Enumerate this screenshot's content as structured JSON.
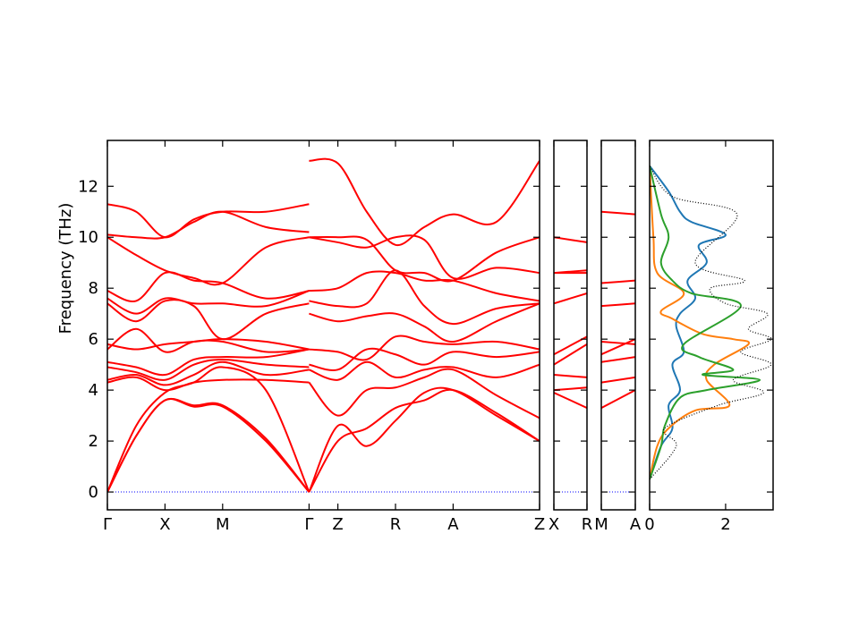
{
  "chart_data": {
    "type": "line",
    "ylabel": "Frequency (THz)",
    "ylim": [
      -0.7,
      13.8
    ],
    "yticks": [
      0,
      2,
      4,
      6,
      8,
      10,
      12
    ],
    "grid": false,
    "band_color": "#ff0000",
    "zero_line_color": "#0000ff",
    "panels": [
      {
        "kind": "band",
        "labels": [
          "Γ",
          "X",
          "M",
          "Γ",
          "Z",
          "R",
          "A",
          "Z"
        ],
        "label_positions": [
          0,
          1,
          2,
          3.5,
          4,
          5,
          6,
          7.5
        ],
        "x_range": [
          0,
          7.5
        ],
        "bands": [
          {
            "x": [
              0,
              0.5,
              1,
              1.5,
              2,
              2.75,
              3.5
            ],
            "y": [
              0,
              2.2,
              3.6,
              3.35,
              3.35,
              2.0,
              0
            ]
          },
          {
            "x": [
              0,
              0.5,
              1,
              1.5,
              2,
              2.75,
              3.5
            ],
            "y": [
              0,
              2.2,
              3.6,
              3.4,
              3.4,
              2.1,
              0
            ]
          },
          {
            "x": [
              0,
              0.5,
              1,
              1.5,
              2,
              2.75,
              3.5
            ],
            "y": [
              0,
              2.6,
              3.9,
              4.3,
              4.9,
              4.0,
              0
            ]
          },
          {
            "x": [
              0,
              0.5,
              1,
              1.5,
              2,
              2.75,
              3.5
            ],
            "y": [
              4.3,
              4.5,
              4.0,
              4.3,
              4.4,
              4.4,
              4.3
            ]
          },
          {
            "x": [
              0,
              0.5,
              1,
              1.5,
              2,
              2.75,
              3.5
            ],
            "y": [
              4.4,
              4.6,
              4.2,
              4.6,
              5.1,
              4.6,
              4.8
            ]
          },
          {
            "x": [
              0,
              0.5,
              1,
              1.5,
              2,
              2.75,
              3.5
            ],
            "y": [
              4.9,
              4.7,
              4.4,
              5.0,
              5.2,
              5.0,
              4.9
            ]
          },
          {
            "x": [
              0,
              0.5,
              1,
              1.5,
              2,
              2.75,
              3.5
            ],
            "y": [
              5.1,
              4.9,
              4.6,
              5.2,
              5.3,
              5.3,
              5.6
            ]
          },
          {
            "x": [
              0,
              0.5,
              1,
              1.5,
              2,
              2.75,
              3.5
            ],
            "y": [
              5.6,
              6.4,
              5.5,
              5.9,
              5.9,
              5.5,
              5.6
            ]
          },
          {
            "x": [
              0,
              0.5,
              1,
              1.5,
              2,
              2.75,
              3.5
            ],
            "y": [
              5.8,
              5.6,
              5.8,
              5.9,
              6.0,
              5.9,
              5.6
            ]
          },
          {
            "x": [
              0,
              0.5,
              1,
              1.5,
              2,
              2.75,
              3.5
            ],
            "y": [
              7.4,
              6.7,
              7.5,
              7.3,
              6.0,
              7.0,
              7.4
            ]
          },
          {
            "x": [
              0,
              0.5,
              1,
              1.5,
              2,
              2.75,
              3.5
            ],
            "y": [
              7.6,
              7.0,
              7.6,
              7.4,
              7.4,
              7.3,
              7.9
            ]
          },
          {
            "x": [
              0,
              0.5,
              1,
              1.5,
              2,
              2.75,
              3.5
            ],
            "y": [
              7.9,
              7.5,
              8.6,
              8.3,
              8.2,
              7.6,
              7.9
            ]
          },
          {
            "x": [
              0,
              0.5,
              1,
              1.5,
              2,
              2.75,
              3.5
            ],
            "y": [
              10.0,
              9.3,
              8.7,
              8.4,
              8.2,
              9.6,
              10.0
            ]
          },
          {
            "x": [
              0,
              0.5,
              1,
              1.5,
              2,
              2.75,
              3.5
            ],
            "y": [
              10.1,
              10.0,
              10.0,
              10.6,
              11.0,
              10.4,
              10.2
            ]
          },
          {
            "x": [
              0,
              0.5,
              1,
              1.5,
              2,
              2.75,
              3.5
            ],
            "y": [
              11.3,
              11.0,
              10.0,
              10.7,
              11.0,
              11.0,
              11.3
            ]
          },
          {
            "x": [
              3.5,
              4,
              4.5,
              5,
              5.5,
              6,
              6.75,
              7.5
            ],
            "y": [
              0,
              2.6,
              1.8,
              2.8,
              3.9,
              4.0,
              3.0,
              2.0
            ]
          },
          {
            "x": [
              3.5,
              4,
              4.5,
              5,
              5.5,
              6,
              6.75,
              7.5
            ],
            "y": [
              0,
              2.0,
              2.5,
              3.3,
              3.6,
              4.0,
              3.1,
              2.0
            ]
          },
          {
            "x": [
              3.5,
              4,
              4.5,
              5,
              5.5,
              6,
              6.75,
              7.5
            ],
            "y": [
              4.3,
              3.0,
              4.0,
              4.1,
              4.5,
              4.8,
              3.8,
              2.9
            ]
          },
          {
            "x": [
              3.5,
              4,
              4.5,
              5,
              5.5,
              6,
              6.75,
              7.5
            ],
            "y": [
              4.8,
              4.4,
              5.1,
              4.5,
              4.8,
              4.9,
              4.5,
              5.0
            ]
          },
          {
            "x": [
              3.5,
              4,
              4.5,
              5,
              5.5,
              6,
              6.75,
              7.5
            ],
            "y": [
              5.0,
              4.8,
              5.6,
              5.4,
              5.0,
              5.5,
              5.3,
              5.5
            ]
          },
          {
            "x": [
              3.5,
              4,
              4.5,
              5,
              5.5,
              6,
              6.75,
              7.5
            ],
            "y": [
              5.6,
              5.5,
              5.2,
              6.1,
              5.9,
              5.8,
              5.9,
              5.6
            ]
          },
          {
            "x": [
              3.5,
              4,
              4.5,
              5,
              5.5,
              6,
              6.75,
              7.5
            ],
            "y": [
              7.0,
              6.7,
              6.9,
              7.0,
              6.5,
              5.9,
              6.7,
              7.4
            ]
          },
          {
            "x": [
              3.5,
              4,
              4.5,
              5,
              5.5,
              6,
              6.75,
              7.5
            ],
            "y": [
              7.5,
              7.3,
              7.4,
              8.7,
              7.3,
              6.6,
              7.2,
              7.4
            ]
          },
          {
            "x": [
              3.5,
              4,
              4.5,
              5,
              5.5,
              6,
              6.75,
              7.5
            ],
            "y": [
              7.9,
              8.0,
              8.6,
              8.6,
              8.3,
              8.3,
              7.8,
              7.5
            ]
          },
          {
            "x": [
              3.5,
              4,
              4.5,
              5,
              5.5,
              6,
              6.75,
              7.5
            ],
            "y": [
              10.0,
              10.0,
              9.9,
              8.7,
              8.6,
              8.3,
              9.4,
              10.0
            ]
          },
          {
            "x": [
              3.5,
              4,
              4.5,
              5,
              5.5,
              6,
              6.75,
              7.5
            ],
            "y": [
              10.0,
              9.8,
              9.6,
              10.0,
              9.9,
              8.4,
              8.8,
              8.6
            ]
          },
          {
            "x": [
              3.5,
              4,
              4.5,
              5,
              5.5,
              6,
              6.75,
              7.5
            ],
            "y": [
              13.0,
              12.9,
              11.0,
              9.7,
              10.4,
              10.9,
              10.6,
              13.0
            ]
          }
        ]
      },
      {
        "kind": "band",
        "labels": [
          "X",
          "R"
        ],
        "label_positions": [
          0,
          1
        ],
        "x_range": [
          0,
          1
        ],
        "bands": [
          {
            "x": [
              0,
              1
            ],
            "y": [
              3.9,
              3.3
            ]
          },
          {
            "x": [
              0,
              1
            ],
            "y": [
              4.0,
              4.1
            ]
          },
          {
            "x": [
              0,
              1
            ],
            "y": [
              4.6,
              4.5
            ]
          },
          {
            "x": [
              0,
              1
            ],
            "y": [
              5.0,
              5.8
            ]
          },
          {
            "x": [
              0,
              1
            ],
            "y": [
              5.4,
              6.1
            ]
          },
          {
            "x": [
              0,
              1
            ],
            "y": [
              7.4,
              7.8
            ]
          },
          {
            "x": [
              0,
              1
            ],
            "y": [
              8.6,
              8.7
            ]
          },
          {
            "x": [
              0,
              1
            ],
            "y": [
              8.6,
              8.6
            ]
          },
          {
            "x": [
              0,
              1
            ],
            "y": [
              10.0,
              9.8
            ]
          }
        ]
      },
      {
        "kind": "band",
        "labels": [
          "M",
          "A"
        ],
        "label_positions": [
          0,
          1
        ],
        "x_range": [
          0,
          1
        ],
        "bands": [
          {
            "x": [
              0,
              1
            ],
            "y": [
              3.3,
              4.0
            ]
          },
          {
            "x": [
              0,
              1
            ],
            "y": [
              4.3,
              4.5
            ]
          },
          {
            "x": [
              0,
              1
            ],
            "y": [
              5.1,
              5.3
            ]
          },
          {
            "x": [
              0,
              1
            ],
            "y": [
              5.4,
              6.0
            ]
          },
          {
            "x": [
              0,
              1
            ],
            "y": [
              5.9,
              5.8
            ]
          },
          {
            "x": [
              0,
              1
            ],
            "y": [
              7.3,
              7.4
            ]
          },
          {
            "x": [
              0,
              1
            ],
            "y": [
              8.2,
              8.3
            ]
          },
          {
            "x": [
              0,
              1
            ],
            "y": [
              11.0,
              10.9
            ]
          }
        ]
      },
      {
        "kind": "dos",
        "x_range": [
          0,
          3.25
        ],
        "xticks": [
          0,
          2
        ],
        "series": [
          {
            "color": "#1f77b4",
            "style": "solid",
            "x": [
              0,
              0.3,
              0.6,
              0.5,
              0.8,
              0.6,
              0.9,
              0.7,
              0.8,
              1.2,
              1.0,
              1.5,
              1.3,
              2.0,
              1.1,
              0.8,
              0.5,
              0
            ],
            "y": [
              0.5,
              1.8,
              2.5,
              3.4,
              4.0,
              5.0,
              5.5,
              6.5,
              7.0,
              7.6,
              8.3,
              9.0,
              9.7,
              10.1,
              10.6,
              11.0,
              11.8,
              12.8
            ]
          },
          {
            "color": "#ff7f0e",
            "style": "solid",
            "x": [
              0,
              0.2,
              0.5,
              1.2,
              2.1,
              1.5,
              1.7,
              2.6,
              2.2,
              1.4,
              0.6,
              0.3,
              0.9,
              0.2,
              0.1,
              0
            ],
            "y": [
              0.5,
              1.8,
              2.5,
              3.2,
              3.4,
              4.4,
              5.0,
              5.8,
              6.0,
              6.2,
              6.8,
              7.1,
              7.8,
              8.6,
              10.0,
              12.8
            ]
          },
          {
            "color": "#2ca02c",
            "style": "solid",
            "x": [
              0,
              0.3,
              0.4,
              0.8,
              1.5,
              2.9,
              1.4,
              2.2,
              1.3,
              0.9,
              2.4,
              1.1,
              0.6,
              0.3,
              0.5,
              0.3,
              0
            ],
            "y": [
              0.5,
              1.8,
              2.6,
              3.7,
              4.0,
              4.4,
              4.6,
              4.8,
              5.3,
              5.8,
              7.3,
              7.8,
              8.3,
              9.0,
              10.0,
              10.9,
              12.8
            ]
          },
          {
            "color": "#000000",
            "style": "dotted",
            "x": [
              0,
              0.7,
              0.4,
              1.8,
              3.0,
              2.2,
              3.2,
              2.4,
              3.2,
              2.6,
              3.1,
              2.0,
              1.6,
              2.5,
              1.2,
              2.3,
              0.6,
              0
            ],
            "y": [
              0.5,
              1.8,
              2.5,
              3.4,
              3.9,
              4.4,
              5.0,
              5.5,
              6.0,
              6.4,
              7.0,
              7.4,
              8.0,
              8.3,
              9.0,
              10.9,
              11.6,
              12.8
            ]
          }
        ]
      }
    ]
  }
}
